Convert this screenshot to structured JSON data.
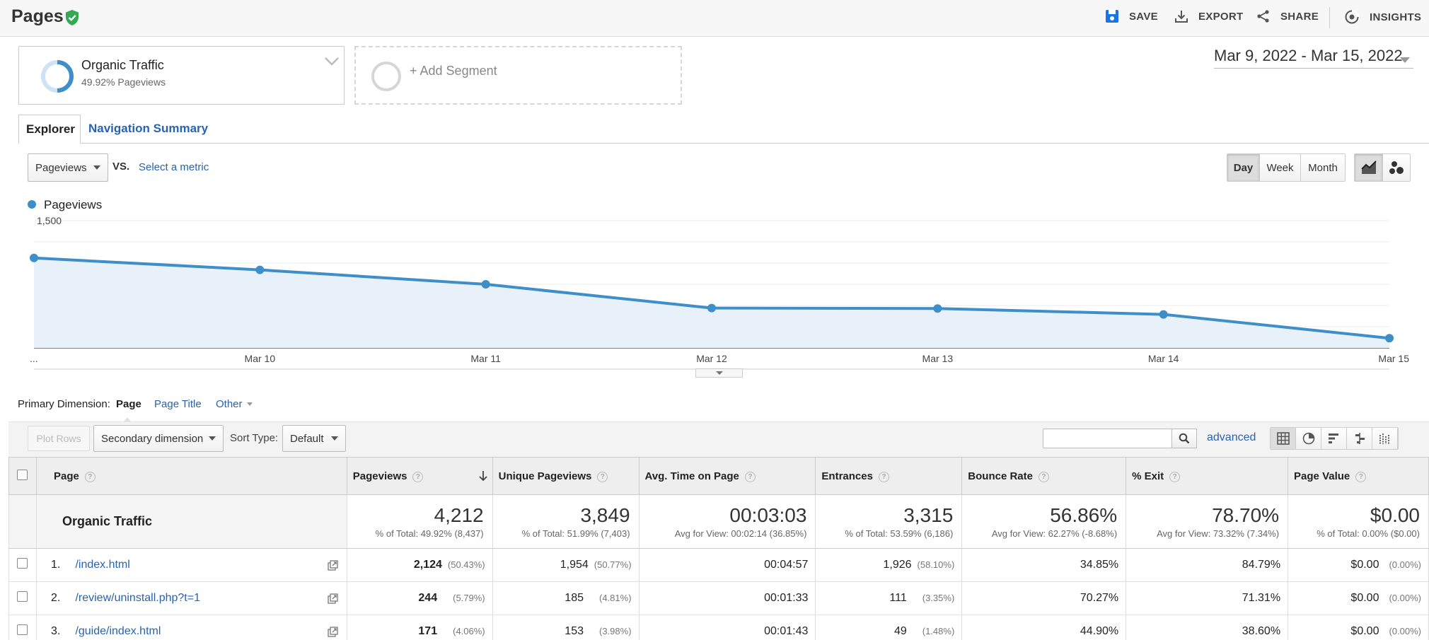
{
  "header": {
    "title": "Pages",
    "actions": [
      {
        "label": "SAVE",
        "icon": "save-icon"
      },
      {
        "label": "EXPORT",
        "icon": "export-icon"
      },
      {
        "label": "SHARE",
        "icon": "share-icon"
      },
      {
        "label": "INSIGHTS",
        "icon": "insights-icon"
      }
    ]
  },
  "segments": {
    "active": {
      "name": "Organic Traffic",
      "detail": "49.92% Pageviews",
      "percent": 49.92
    },
    "add_label": "+ Add Segment"
  },
  "date_range": "Mar 9, 2022 - Mar 15, 2022",
  "tabs": [
    {
      "label": "Explorer",
      "active": true
    },
    {
      "label": "Navigation Summary",
      "active": false
    }
  ],
  "metric_picker": {
    "selected": "Pageviews",
    "vs_label": "VS.",
    "select_metric": "Select a metric"
  },
  "granularity": [
    {
      "label": "Day",
      "active": true
    },
    {
      "label": "Week",
      "active": false
    },
    {
      "label": "Month",
      "active": false
    }
  ],
  "chart_data": {
    "type": "line",
    "series": [
      {
        "name": "Pageviews",
        "values": [
          1060,
          920,
          750,
          470,
          465,
          395,
          115
        ],
        "color": "#3d8ec9"
      }
    ],
    "x": [
      "...",
      "Mar 10",
      "Mar 11",
      "Mar 12",
      "Mar 13",
      "Mar 14",
      "Mar 15"
    ],
    "yticks": [
      "1,500",
      "1,000",
      "500"
    ],
    "ylim": [
      0,
      1500
    ],
    "grid": true,
    "legend": "top-left"
  },
  "dimension": {
    "label": "Primary Dimension:",
    "options": [
      {
        "label": "Page",
        "active": true
      },
      {
        "label": "Page Title",
        "active": false
      },
      {
        "label": "Other",
        "active": false
      }
    ]
  },
  "controls": {
    "plot_rows": "Plot Rows",
    "secondary_dimension": "Secondary dimension",
    "sort_type_label": "Sort Type:",
    "sort_type_value": "Default",
    "search_value": "",
    "advanced": "advanced"
  },
  "table": {
    "columns": [
      "Page",
      "Pageviews",
      "Unique Pageviews",
      "Avg. Time on Page",
      "Entrances",
      "Bounce Rate",
      "% Exit",
      "Page Value"
    ],
    "total": {
      "label": "Organic Traffic",
      "cells": [
        {
          "value": "4,212",
          "sub": "% of Total: 49.92% (8,437)"
        },
        {
          "value": "3,849",
          "sub": "% of Total: 51.99% (7,403)"
        },
        {
          "value": "00:03:03",
          "sub": "Avg for View: 00:02:14 (36.85%)"
        },
        {
          "value": "3,315",
          "sub": "% of Total: 53.59% (6,186)"
        },
        {
          "value": "56.86%",
          "sub": "Avg for View: 62.27% (-8.68%)"
        },
        {
          "value": "78.70%",
          "sub": "Avg for View: 73.32% (7.34%)"
        },
        {
          "value": "$0.00",
          "sub": "% of Total: 0.00% ($0.00)"
        }
      ]
    },
    "rows": [
      {
        "index": "1.",
        "page": "/index.html",
        "pageviews": "2,124",
        "pageviews_pct": "(50.43%)",
        "unique": "1,954",
        "unique_pct": "(50.77%)",
        "avg_time": "00:04:57",
        "entrances": "1,926",
        "entrances_pct": "(58.10%)",
        "bounce": "34.85%",
        "exit": "84.79%",
        "value": "$0.00",
        "value_pct": "(0.00%)"
      },
      {
        "index": "2.",
        "page": "/review/uninstall.php?t=1",
        "pageviews": "244",
        "pageviews_pct": "(5.79%)",
        "unique": "185",
        "unique_pct": "(4.81%)",
        "avg_time": "00:01:33",
        "entrances": "111",
        "entrances_pct": "(3.35%)",
        "bounce": "70.27%",
        "exit": "71.31%",
        "value": "$0.00",
        "value_pct": "(0.00%)"
      },
      {
        "index": "3.",
        "page": "/guide/index.html",
        "pageviews": "171",
        "pageviews_pct": "(4.06%)",
        "unique": "153",
        "unique_pct": "(3.98%)",
        "avg_time": "00:01:43",
        "entrances": "49",
        "entrances_pct": "(1.48%)",
        "bounce": "44.90%",
        "exit": "38.60%",
        "value": "$0.00",
        "value_pct": "(0.00%)"
      }
    ]
  },
  "colors": {
    "accent": "#3d8ec9",
    "link": "#2962ad",
    "verified": "#34a853"
  }
}
